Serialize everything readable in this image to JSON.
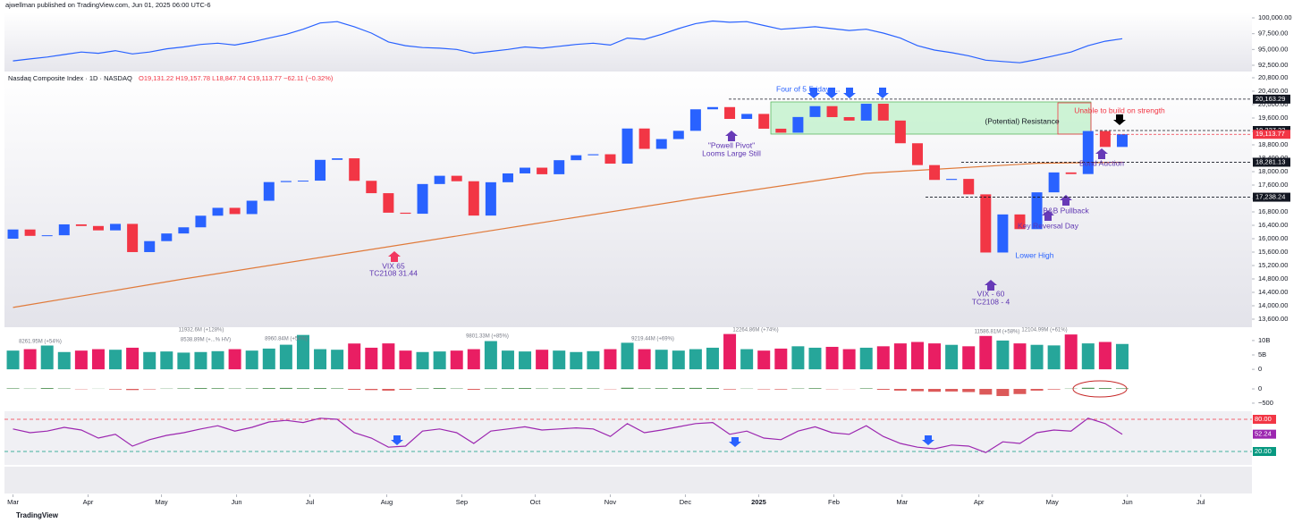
{
  "header": "ajwellman published on TradingView.com, Jun 01, 2025 06:00 UTC-6",
  "footer": "TradingView",
  "chart_data": [
    {
      "type": "line",
      "color": "#2962ff",
      "ylim": [
        91793,
        100849
      ],
      "yticks": [
        {
          "value": 100000,
          "label": "100,000.00"
        },
        {
          "value": 97500,
          "label": "97,500.00"
        },
        {
          "value": 95000,
          "label": "95,000.00"
        },
        {
          "value": 92500,
          "label": "92,500.00"
        }
      ],
      "values": [
        93200,
        93500,
        93800,
        94200,
        94600,
        94400,
        94800,
        94300,
        94600,
        95100,
        95400,
        95800,
        96000,
        95700,
        96200,
        96800,
        97400,
        98200,
        99200,
        99400,
        98600,
        97600,
        96200,
        95600,
        95300,
        95200,
        95000,
        94400,
        94700,
        95000,
        95400,
        95200,
        95500,
        95800,
        96000,
        95700,
        96800,
        96600,
        97400,
        98300,
        99100,
        99500,
        99300,
        99400,
        98800,
        98200,
        98400,
        98600,
        98300,
        98000,
        98200,
        97600,
        96800,
        95600,
        94900,
        94500,
        94000,
        93300,
        93100,
        92900,
        93400,
        94000,
        94600,
        95600,
        96300,
        96700
      ]
    },
    {
      "type": "candlestick",
      "title": "Nasdaq Composite Index · 1D · NASDAQ",
      "ohlc": "O19,131.22 H19,157.78 L18,847.74 C19,113.77 −62.11 (−0.32%)",
      "up_color": "#2962ff",
      "down_color": "#f23645",
      "xlim": [
        -0.5,
        72.6
      ],
      "ylim": [
        13387,
        20880
      ],
      "xticks": [
        {
          "value": 0,
          "label": "Mar"
        },
        {
          "value": 4.4,
          "label": "Apr"
        },
        {
          "value": 8.7,
          "label": "May"
        },
        {
          "value": 13.1,
          "label": "Jun"
        },
        {
          "value": 17.4,
          "label": "Jul"
        },
        {
          "value": 21.9,
          "label": "Aug"
        },
        {
          "value": 26.3,
          "label": "Sep"
        },
        {
          "value": 30.6,
          "label": "Oct"
        },
        {
          "value": 35,
          "label": "Nov"
        },
        {
          "value": 39.4,
          "label": "Dec"
        },
        {
          "value": 43.7,
          "label": "2025"
        },
        {
          "value": 48.1,
          "label": "Feb"
        },
        {
          "value": 52.1,
          "label": "Mar"
        },
        {
          "value": 56.6,
          "label": "Apr"
        },
        {
          "value": 60.9,
          "label": "May"
        },
        {
          "value": 65.3,
          "label": "Jun"
        },
        {
          "value": 69.6,
          "label": "Jul"
        }
      ],
      "yticks": [
        {
          "value": 13600,
          "label": "13,600.00"
        },
        {
          "value": 14000,
          "label": "14,000.00"
        },
        {
          "value": 14400,
          "label": "14,400.00"
        },
        {
          "value": 14800,
          "label": "14,800.00"
        },
        {
          "value": 15200,
          "label": "15,200.00"
        },
        {
          "value": 15600,
          "label": "15,600.00"
        },
        {
          "value": 16000,
          "label": "16,000.00"
        },
        {
          "value": 16400,
          "label": "16,400.00"
        },
        {
          "value": 16800,
          "label": "16,800.00"
        },
        {
          "value": 17200,
          "label": "17,200.00"
        },
        {
          "value": 17600,
          "label": "17,600.00"
        },
        {
          "value": 18000,
          "label": "18,000.00"
        },
        {
          "value": 18400,
          "label": "18,400.00"
        },
        {
          "value": 18800,
          "label": "18,800.00"
        },
        {
          "value": 19200,
          "label": "19,200.00"
        },
        {
          "value": 19600,
          "label": "19,600.00"
        },
        {
          "value": 20000,
          "label": "20,000.00"
        },
        {
          "value": 20400,
          "label": "20,400.00"
        },
        {
          "value": 20800,
          "label": "20,800.00"
        }
      ],
      "open": [
        16000,
        16275,
        16085,
        16103,
        16428,
        16379,
        16249,
        16442,
        15601,
        15928,
        16156,
        16340,
        16686,
        16921,
        16735,
        17133,
        17689,
        17721,
        17732,
        18352,
        18398,
        17727,
        17358,
        16776,
        16745,
        17631,
        17877,
        17714,
        16690,
        17684,
        17948,
        18119,
        17923,
        18342,
        18489,
        18519,
        18239,
        19287,
        18680,
        18972,
        19218,
        19860,
        19926,
        19573,
        19722,
        19281,
        19162,
        19630,
        19954,
        19627,
        19523,
        20026,
        19524,
        18847,
        18196,
        17754,
        17784,
        17323,
        15588,
        16724,
        16286,
        17383,
        17977,
        17929,
        19211,
        18737
      ],
      "close": [
        16275,
        16085,
        16103,
        16428,
        16379,
        16249,
        16442,
        15601,
        15928,
        16156,
        16340,
        16686,
        16921,
        16735,
        17133,
        17689,
        17721,
        17732,
        18352,
        18398,
        17727,
        17358,
        16776,
        16745,
        17631,
        17877,
        17714,
        16690,
        17684,
        17948,
        18119,
        17923,
        18342,
        18489,
        18519,
        18239,
        19287,
        18680,
        18972,
        19218,
        19860,
        19926,
        19573,
        19722,
        19281,
        19162,
        19630,
        19954,
        19627,
        19523,
        20026,
        19524,
        18847,
        18196,
        17754,
        17784,
        17323,
        15588,
        16724,
        16286,
        17383,
        17977,
        17929,
        19211,
        18737,
        19114
      ],
      "ma": {
        "color": "#e07a3a",
        "x": [
          0,
          10,
          20,
          30,
          40,
          50,
          60,
          65
        ],
        "values": [
          13950,
          14800,
          15600,
          16400,
          17200,
          17950,
          18250,
          18280
        ]
      },
      "price_lines": [
        {
          "value": 20163.29,
          "label": "20,163.29",
          "color": "#131722"
        },
        {
          "value": 19227.22,
          "label": "19,227.22",
          "color": "#131722"
        },
        {
          "value": 19113.77,
          "label": "19,113.77",
          "color": "#f23645"
        },
        {
          "value": 18281.13,
          "label": "18,281.13",
          "color": "#131722"
        },
        {
          "value": 17238.24,
          "label": "17,238.24",
          "color": "#131722"
        }
      ],
      "annotations": [
        {
          "text": "Four of 5 Fridays...",
          "color": "#2962ff"
        },
        {
          "text": "\"Powell Pivot\"",
          "color": "#5e35b1"
        },
        {
          "text": "Looms Large Still",
          "color": "#5e35b1"
        },
        {
          "text": "(Potential) Resistance",
          "color": "#131722"
        },
        {
          "text": "Unable to build on strength",
          "color": "#f23645"
        },
        {
          "text": "Bond Auction",
          "color": "#5e35b1"
        },
        {
          "text": "B&B Pullback",
          "color": "#5e35b1"
        },
        {
          "text": "Key Reversal Day",
          "color": "#5e35b1"
        },
        {
          "text": "Lower High",
          "color": "#2962ff"
        },
        {
          "text": "VIX - 60",
          "color": "#5e35b1"
        },
        {
          "text": "TC2108 - 4",
          "color": "#5e35b1"
        },
        {
          "text": "VIX 65",
          "color": "#5e35b1"
        },
        {
          "text": "TC2108 31.44",
          "color": "#5e35b1"
        }
      ]
    },
    {
      "type": "bar",
      "ylim": [
        -0.9,
        14
      ],
      "yticks": [
        0,
        {
          "value": 5,
          "label": "5B"
        },
        {
          "value": 10,
          "label": "10B"
        }
      ],
      "values": [
        6.5,
        7,
        8.26,
        6,
        6.5,
        7,
        6.8,
        7.5,
        6,
        6.2,
        5.8,
        6,
        6.3,
        7,
        6.5,
        7.2,
        8.54,
        11.93,
        7,
        6.8,
        8.96,
        7.5,
        9,
        6.5,
        6,
        6.2,
        6.5,
        7,
        9.8,
        6.5,
        6.2,
        6.8,
        6.5,
        6,
        6.3,
        7,
        9.22,
        7,
        6.8,
        6.5,
        7,
        7.5,
        12.26,
        7,
        6.5,
        7.2,
        8,
        7.5,
        7.8,
        7,
        7.5,
        8,
        9,
        9.5,
        9,
        8.5,
        8,
        11.59,
        10,
        9,
        8.5,
        8.3,
        12.1,
        9,
        9.5,
        8.8
      ],
      "annotations": [
        "8261.95M (+54%)",
        "11932.6M (+128%)",
        "8538.89M (+...% HV)",
        "8960.84M (+54%)",
        "9801.33M (+85%)",
        "9219.44M (+69%)",
        "12264.86M (+74%)",
        "11586.81M (+58%)",
        "12104.99M (+61%)"
      ]
    },
    {
      "type": "bar",
      "color": "#2e7d32",
      "neg_color": "#d32f2f",
      "ylim": [
        -690,
        440
      ],
      "yticks": [
        0,
        {
          "value": -500,
          "label": "−500"
        }
      ],
      "values": [
        20,
        10,
        30,
        15,
        -10,
        5,
        -20,
        -40,
        -15,
        10,
        20,
        30,
        25,
        15,
        20,
        30,
        35,
        25,
        30,
        20,
        -30,
        -40,
        -60,
        -30,
        20,
        30,
        15,
        -30,
        20,
        25,
        30,
        15,
        20,
        25,
        20,
        -10,
        40,
        20,
        25,
        30,
        35,
        30,
        -20,
        10,
        -15,
        -20,
        15,
        25,
        -10,
        -5,
        20,
        -30,
        -60,
        -80,
        -100,
        -90,
        -110,
        -200,
        -250,
        -180,
        -60,
        -20,
        10,
        40,
        30,
        20
      ]
    },
    {
      "type": "line",
      "color": "#9c27b0",
      "ylim": [
        0,
        100
      ],
      "yticks": [
        {
          "value": 80,
          "label": "80.00",
          "color": "#f23645",
          "dashed": true
        },
        {
          "value": 52.24,
          "label": "52.24",
          "color": "#9c27b0",
          "dashed": false
        },
        {
          "value": 20,
          "label": "20.00",
          "color": "#089981",
          "dashed": true
        }
      ],
      "values": [
        62,
        55,
        58,
        65,
        60,
        45,
        52,
        30,
        42,
        50,
        55,
        62,
        68,
        58,
        65,
        75,
        78,
        74,
        82,
        80,
        55,
        45,
        28,
        30,
        58,
        62,
        55,
        35,
        58,
        62,
        66,
        60,
        62,
        64,
        62,
        48,
        72,
        55,
        60,
        66,
        72,
        74,
        52,
        58,
        45,
        42,
        58,
        66,
        55,
        52,
        68,
        48,
        35,
        28,
        25,
        32,
        30,
        18,
        38,
        35,
        55,
        60,
        58,
        82,
        72,
        52.24
      ]
    }
  ]
}
